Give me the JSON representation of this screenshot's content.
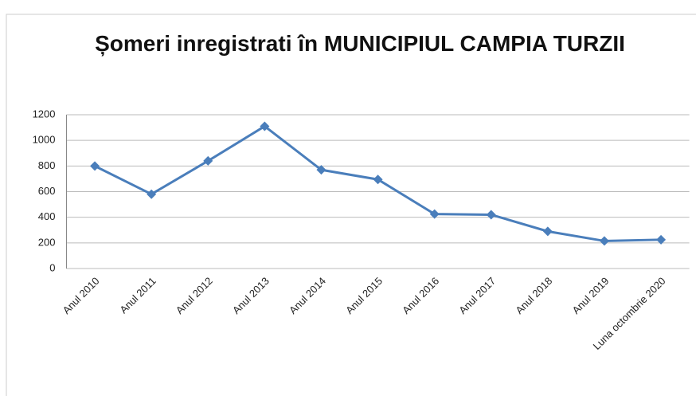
{
  "chart_data": {
    "type": "line",
    "title": "Șomeri inregistrati în MUNICIPIUL CAMPIA TURZII",
    "categories": [
      "Anul 2010",
      "Anul 2011",
      "Anul 2012",
      "Anul 2013",
      "Anul 2014",
      "Anul 2015",
      "Anul 2016",
      "Anul 2017",
      "Anul 2018",
      "Anul 2019",
      "Luna octombrie 2020"
    ],
    "series": [
      {
        "name": "Șomeri",
        "color": "#4a7ebb",
        "values": [
          800,
          580,
          840,
          1110,
          770,
          695,
          425,
          420,
          290,
          215,
          225
        ]
      }
    ],
    "ylim": [
      0,
      1200
    ],
    "yticks": [
      0,
      200,
      400,
      600,
      800,
      1000,
      1200
    ],
    "grid": true,
    "legend": false
  }
}
